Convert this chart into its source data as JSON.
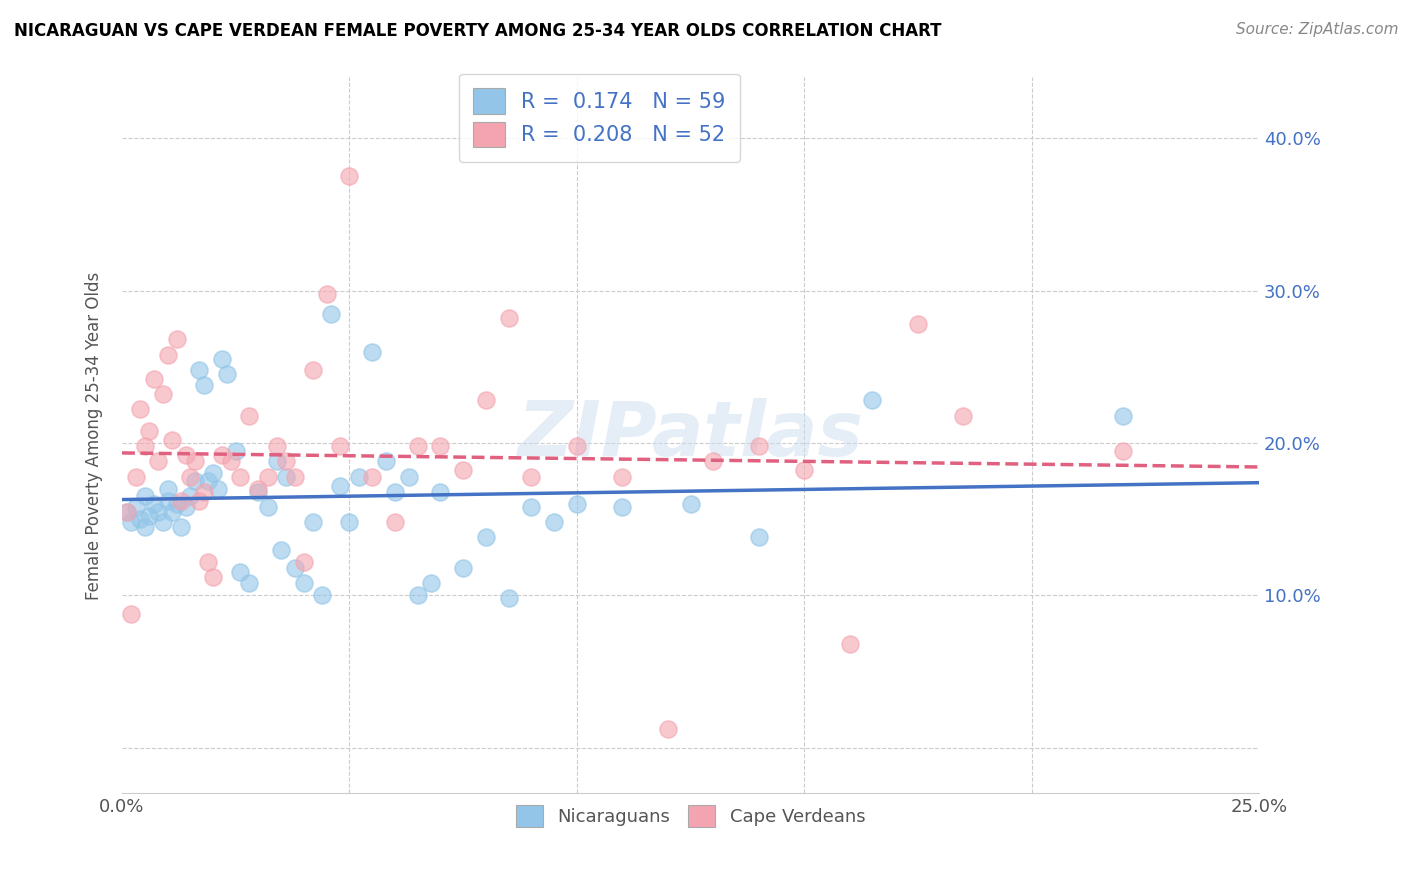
{
  "title": "NICARAGUAN VS CAPE VERDEAN FEMALE POVERTY AMONG 25-34 YEAR OLDS CORRELATION CHART",
  "source": "Source: ZipAtlas.com",
  "ylabel": "Female Poverty Among 25-34 Year Olds",
  "yaxis_ticks": [
    0.0,
    0.1,
    0.2,
    0.3,
    0.4
  ],
  "yaxis_labels": [
    "",
    "10.0%",
    "20.0%",
    "30.0%",
    "40.0%"
  ],
  "xlim": [
    0.0,
    0.25
  ],
  "ylim": [
    -0.03,
    0.44
  ],
  "nicaraguan_color": "#92C5E8",
  "cape_verdean_color": "#F4A4B0",
  "nicaraguan_line_color": "#4472C4",
  "cape_verdean_line_color": "#E06080",
  "R_nicaraguan": 0.174,
  "N_nicaraguan": 59,
  "R_cape_verdean": 0.208,
  "N_cape_verdean": 52,
  "legend_labels": [
    "Nicaraguans",
    "Cape Verdeans"
  ],
  "watermark": "ZIPatlas",
  "nicaraguan_x": [
    0.001,
    0.002,
    0.003,
    0.004,
    0.005,
    0.005,
    0.006,
    0.007,
    0.008,
    0.009,
    0.01,
    0.01,
    0.011,
    0.012,
    0.013,
    0.014,
    0.015,
    0.016,
    0.017,
    0.018,
    0.019,
    0.02,
    0.021,
    0.022,
    0.023,
    0.025,
    0.026,
    0.028,
    0.03,
    0.032,
    0.034,
    0.035,
    0.036,
    0.038,
    0.04,
    0.042,
    0.044,
    0.046,
    0.048,
    0.05,
    0.052,
    0.055,
    0.058,
    0.06,
    0.063,
    0.065,
    0.068,
    0.07,
    0.075,
    0.08,
    0.085,
    0.09,
    0.095,
    0.1,
    0.11,
    0.125,
    0.14,
    0.165,
    0.22
  ],
  "nicaraguan_y": [
    0.155,
    0.148,
    0.158,
    0.15,
    0.145,
    0.165,
    0.152,
    0.16,
    0.155,
    0.148,
    0.162,
    0.17,
    0.155,
    0.16,
    0.145,
    0.158,
    0.165,
    0.175,
    0.248,
    0.238,
    0.175,
    0.18,
    0.17,
    0.255,
    0.245,
    0.195,
    0.115,
    0.108,
    0.168,
    0.158,
    0.188,
    0.13,
    0.178,
    0.118,
    0.108,
    0.148,
    0.1,
    0.285,
    0.172,
    0.148,
    0.178,
    0.26,
    0.188,
    0.168,
    0.178,
    0.1,
    0.108,
    0.168,
    0.118,
    0.138,
    0.098,
    0.158,
    0.148,
    0.16,
    0.158,
    0.16,
    0.138,
    0.228,
    0.218
  ],
  "cape_verdean_x": [
    0.001,
    0.002,
    0.003,
    0.004,
    0.005,
    0.006,
    0.007,
    0.008,
    0.009,
    0.01,
    0.011,
    0.012,
    0.013,
    0.014,
    0.015,
    0.016,
    0.017,
    0.018,
    0.019,
    0.02,
    0.022,
    0.024,
    0.026,
    0.028,
    0.03,
    0.032,
    0.034,
    0.036,
    0.038,
    0.04,
    0.042,
    0.045,
    0.048,
    0.05,
    0.055,
    0.06,
    0.065,
    0.07,
    0.075,
    0.08,
    0.085,
    0.09,
    0.1,
    0.11,
    0.12,
    0.13,
    0.14,
    0.15,
    0.16,
    0.175,
    0.185,
    0.22
  ],
  "cape_verdean_y": [
    0.155,
    0.088,
    0.178,
    0.222,
    0.198,
    0.208,
    0.242,
    0.188,
    0.232,
    0.258,
    0.202,
    0.268,
    0.162,
    0.192,
    0.178,
    0.188,
    0.162,
    0.168,
    0.122,
    0.112,
    0.192,
    0.188,
    0.178,
    0.218,
    0.17,
    0.178,
    0.198,
    0.188,
    0.178,
    0.122,
    0.248,
    0.298,
    0.198,
    0.375,
    0.178,
    0.148,
    0.198,
    0.198,
    0.182,
    0.228,
    0.282,
    0.178,
    0.198,
    0.178,
    0.012,
    0.188,
    0.198,
    0.182,
    0.068,
    0.278,
    0.218,
    0.195
  ]
}
